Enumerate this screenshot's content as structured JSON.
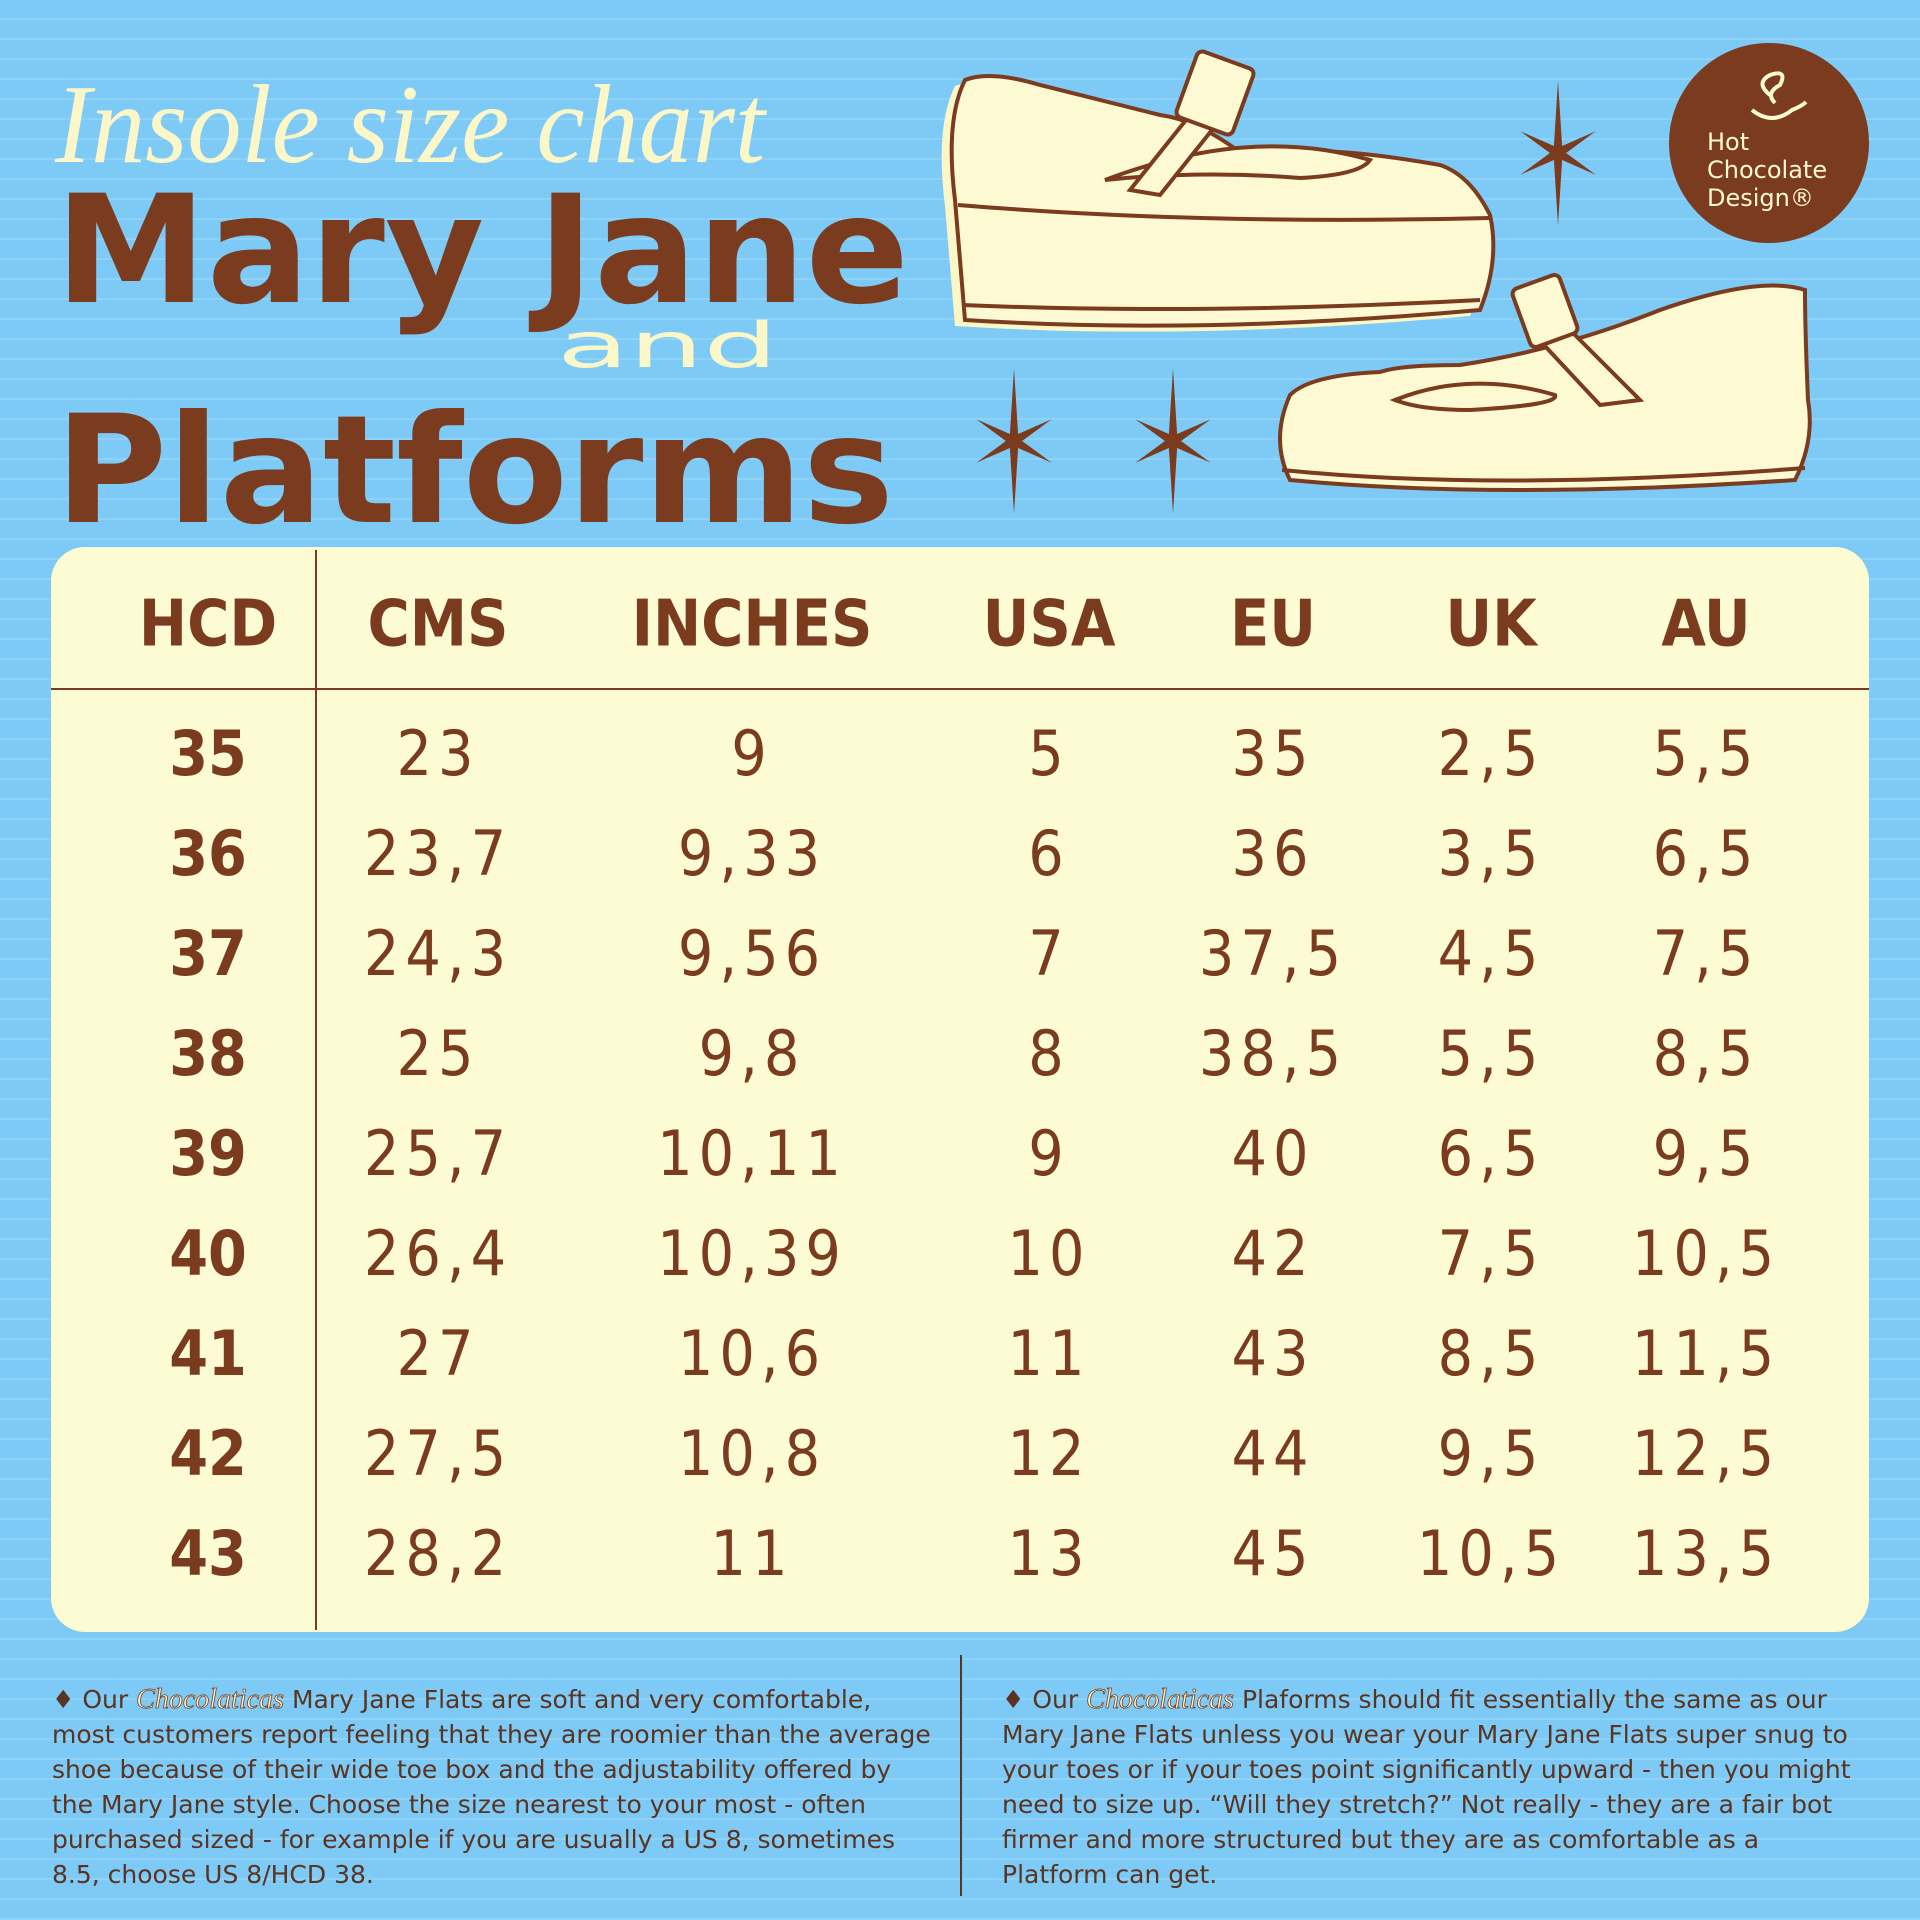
{
  "header": {
    "script_title": "Insole size chart",
    "title_line1": "Mary Jane",
    "connector": "and",
    "title_line2": "Platforms"
  },
  "logo": {
    "line1": "Hot",
    "line2": "Chocolate",
    "line3": "Design®"
  },
  "table": {
    "header": [
      "HCD",
      "CMS",
      "INCHES",
      "USA",
      "EU",
      "UK",
      "AU"
    ],
    "rows": [
      [
        "35",
        "23",
        "9",
        "5",
        "35",
        "2,5",
        "5,5"
      ],
      [
        "36",
        "23,7",
        "9,33",
        "6",
        "36",
        "3,5",
        "6,5"
      ],
      [
        "37",
        "24,3",
        "9,56",
        "7",
        "37,5",
        "4,5",
        "7,5"
      ],
      [
        "38",
        "25",
        "9,8",
        "8",
        "38,5",
        "5,5",
        "8,5"
      ],
      [
        "39",
        "25,7",
        "10,11",
        "9",
        "40",
        "6,5",
        "9,5"
      ],
      [
        "40",
        "26,4",
        "10,39",
        "10",
        "42",
        "7,5",
        "10,5"
      ],
      [
        "41",
        "27",
        "10,6",
        "11",
        "43",
        "8,5",
        "11,5"
      ],
      [
        "42",
        "27,5",
        "10,8",
        "12",
        "44",
        "9,5",
        "12,5"
      ],
      [
        "43",
        "28,2",
        "11",
        "13",
        "45",
        "10,5",
        "13,5"
      ]
    ]
  },
  "notes": {
    "left": {
      "prefix": "♦ Our",
      "brand": "Chocolaticas",
      "lines": [
        "Mary Jane Flats are soft and very comfortable,",
        "most customers report feeling that they are roomier than the average",
        "shoe because of their wide toe box and the adjustability offered by",
        "the Mary Jane style. Choose the size nearest to your most - often",
        "purchased sized - for example if you are usually a US 8, sometimes",
        "8.5, choose US 8/HCD 38."
      ]
    },
    "right": {
      "prefix": "♦ Our",
      "brand": "Chocolaticas",
      "lines": [
        "Plaforms should fit essentially the same as our",
        "Mary Jane Flats unless you wear your Mary Jane Flats super snug to",
        "your toes or if your toes point significantly upward - then you might",
        "need to size  up. “Will they stretch?” Not really - they are a fair bot",
        "firmer and more structured but they are as comfortable as a",
        "Platform can get."
      ]
    }
  }
}
